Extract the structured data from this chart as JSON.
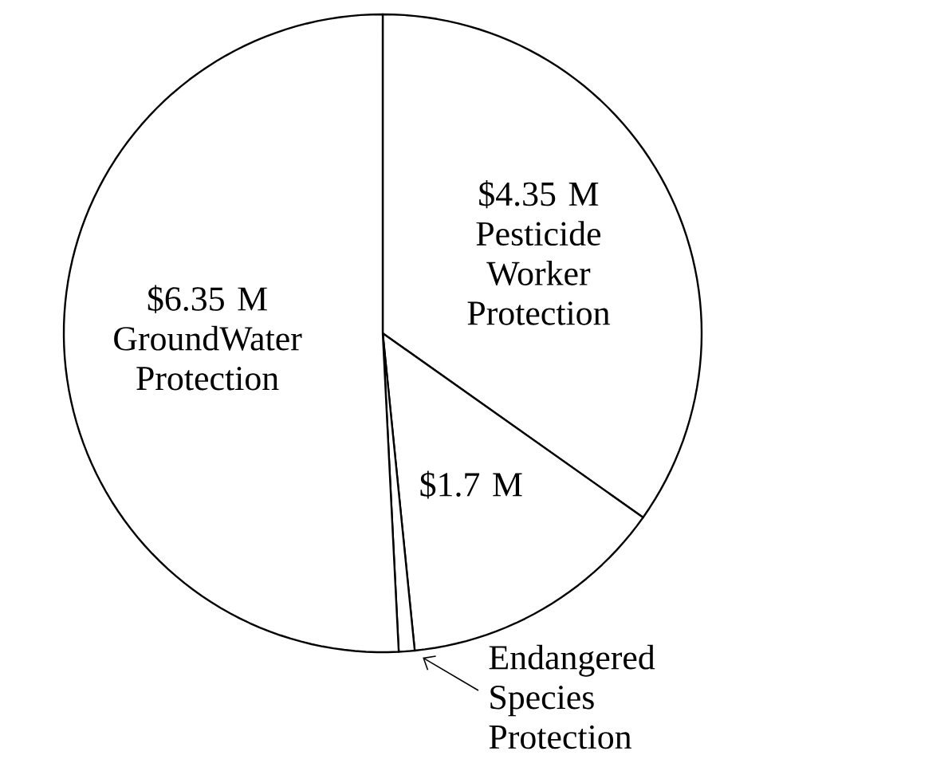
{
  "chart_data": {
    "type": "pie",
    "categories": [
      "Pesticide Worker Protection",
      null,
      "Endangered Species Protection",
      "GroundWater Protection"
    ],
    "values": [
      4.35,
      1.7,
      0.1,
      6.35
    ],
    "value_labels": [
      "$4.35 M",
      "$1.7 M",
      null,
      "$6.35 M"
    ],
    "colors": [
      "#ffffff",
      "#ffffff",
      "#ffffff",
      "#ffffff"
    ]
  }
}
